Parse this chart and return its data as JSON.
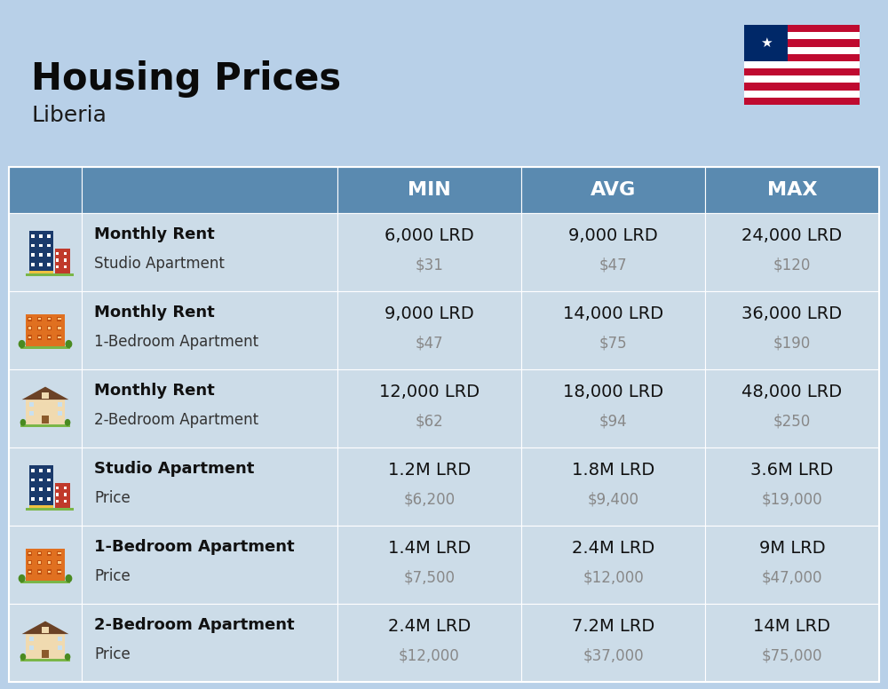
{
  "title": "Housing Prices",
  "subtitle": "Liberia",
  "background_color": "#b8d0e8",
  "header_bg_color": "#5a8ab0",
  "header_text_color": "#ffffff",
  "row_bg_light": "#ccdce8",
  "row_bg_dark": "#baced8",
  "divider_color": "#ffffff",
  "col_header_labels": [
    "MIN",
    "AVG",
    "MAX"
  ],
  "rows": [
    {
      "bold_label": "Monthly Rent",
      "sub_label": "Studio Apartment",
      "min_lrd": "6,000 LRD",
      "min_usd": "$31",
      "avg_lrd": "9,000 LRD",
      "avg_usd": "$47",
      "max_lrd": "24,000 LRD",
      "max_usd": "$120",
      "icon_type": "tall_blue"
    },
    {
      "bold_label": "Monthly Rent",
      "sub_label": "1-Bedroom Apartment",
      "min_lrd": "9,000 LRD",
      "min_usd": "$47",
      "avg_lrd": "14,000 LRD",
      "avg_usd": "$75",
      "max_lrd": "36,000 LRD",
      "max_usd": "$190",
      "icon_type": "wide_orange"
    },
    {
      "bold_label": "Monthly Rent",
      "sub_label": "2-Bedroom Apartment",
      "min_lrd": "12,000 LRD",
      "min_usd": "$62",
      "avg_lrd": "18,000 LRD",
      "avg_usd": "$94",
      "max_lrd": "48,000 LRD",
      "max_usd": "$250",
      "icon_type": "house_tan"
    },
    {
      "bold_label": "Studio Apartment",
      "sub_label": "Price",
      "min_lrd": "1.2M LRD",
      "min_usd": "$6,200",
      "avg_lrd": "1.8M LRD",
      "avg_usd": "$9,400",
      "max_lrd": "3.6M LRD",
      "max_usd": "$19,000",
      "icon_type": "tall_blue"
    },
    {
      "bold_label": "1-Bedroom Apartment",
      "sub_label": "Price",
      "min_lrd": "1.4M LRD",
      "min_usd": "$7,500",
      "avg_lrd": "2.4M LRD",
      "avg_usd": "$12,000",
      "max_lrd": "9M LRD",
      "max_usd": "$47,000",
      "icon_type": "wide_orange"
    },
    {
      "bold_label": "2-Bedroom Apartment",
      "sub_label": "Price",
      "min_lrd": "2.4M LRD",
      "min_usd": "$12,000",
      "avg_lrd": "7.2M LRD",
      "avg_usd": "$37,000",
      "max_lrd": "14M LRD",
      "max_usd": "$75,000",
      "icon_type": "house_tan"
    }
  ]
}
